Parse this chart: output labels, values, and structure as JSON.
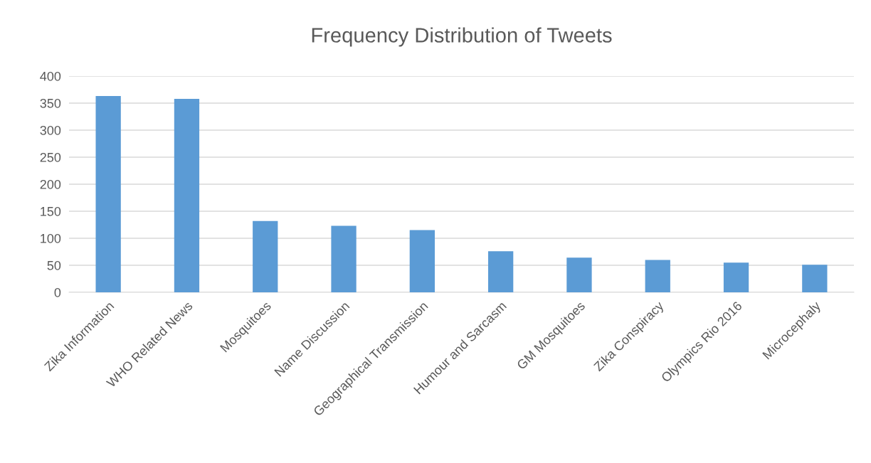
{
  "chart_data": {
    "type": "bar",
    "title": "Frequency Distribution of Tweets",
    "categories": [
      "Zika Information",
      "WHO Related News",
      "Mosquitoes",
      "Name Discussion",
      "Geographical Transmission",
      "Humour and Sarcasm",
      "GM Mosquitoes",
      "Zika Conspiracy",
      "Olympics Rio 2016",
      "Microcephaly"
    ],
    "values": [
      363,
      358,
      132,
      123,
      115,
      76,
      64,
      60,
      55,
      51
    ],
    "color": "#5b9bd5",
    "ylim": [
      0,
      400
    ],
    "yticks": [
      0,
      50,
      100,
      150,
      200,
      250,
      300,
      350,
      400
    ],
    "grid": "y"
  }
}
